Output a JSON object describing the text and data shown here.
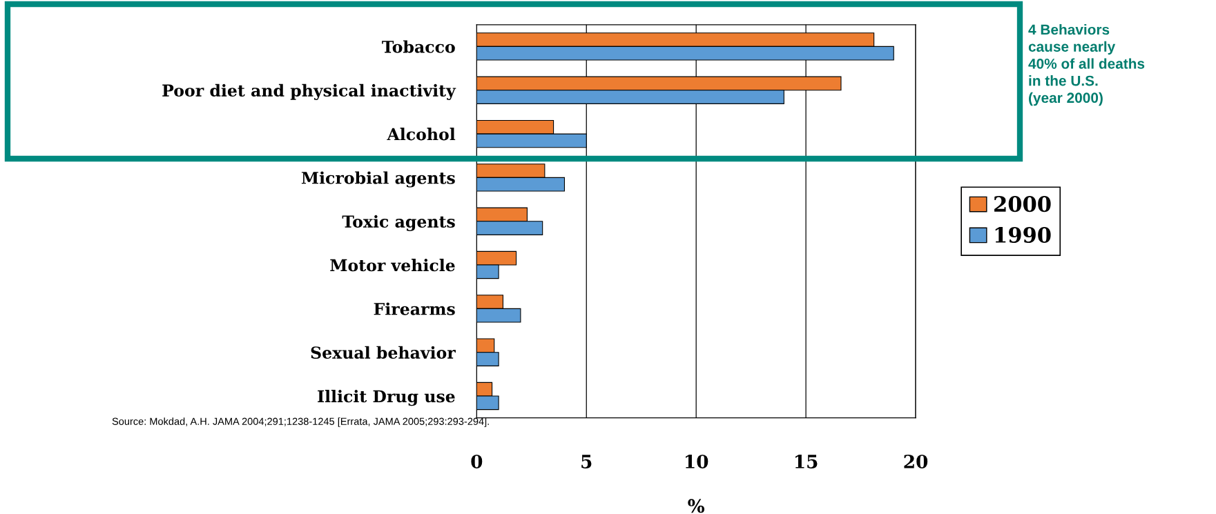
{
  "chart_data": {
    "type": "bar",
    "orientation": "horizontal",
    "categories": [
      "Tobacco",
      "Poor diet and physical inactivity",
      "Alcohol",
      "Microbial agents",
      "Toxic agents",
      "Motor vehicle",
      "Firearms",
      "Sexual behavior",
      "Illicit Drug use"
    ],
    "series": [
      {
        "name": "2000",
        "color": "#ed7d31",
        "values": [
          18.1,
          16.6,
          3.5,
          3.1,
          2.3,
          1.8,
          1.2,
          0.8,
          0.7
        ]
      },
      {
        "name": "1990",
        "color": "#5b9bd5",
        "values": [
          19.0,
          14.0,
          5.0,
          4.0,
          3.0,
          1.0,
          2.0,
          1.0,
          1.0
        ]
      }
    ],
    "xlim": [
      0,
      20
    ],
    "xticks": [
      0,
      5,
      10,
      15,
      20
    ],
    "xlabel": "%",
    "grid": "x",
    "legend": "right",
    "annotations": [
      "4 Behaviors\ncause nearly\n40% of all deaths\nin the U.S.\n(year 2000)",
      "Source: Mokdad, A.H. JAMA 2004;291;1238-1245 [Errata, JAMA 2005;293:293-294]."
    ]
  }
}
